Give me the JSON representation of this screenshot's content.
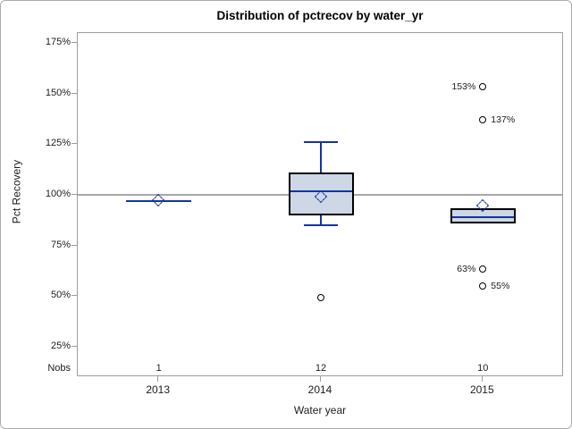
{
  "window": {
    "background": "#ffffff",
    "border_color": "#acacac"
  },
  "chart_data": {
    "type": "boxplot",
    "title": "Distribution of pctrecov by water_yr",
    "xlabel": "Water year",
    "ylabel": "Pct Recovery",
    "nobs_header": "Nobs",
    "y_axis": {
      "ticks": [
        {
          "value": 175,
          "label": "175%"
        },
        {
          "value": 150,
          "label": "150%"
        },
        {
          "value": 125,
          "label": "125%"
        },
        {
          "value": 100,
          "label": "100%"
        },
        {
          "value": 75,
          "label": "75%"
        },
        {
          "value": 50,
          "label": "50%"
        },
        {
          "value": 25,
          "label": "25%"
        }
      ],
      "range": [
        10,
        180
      ],
      "grid": false
    },
    "reference_line": {
      "value": 100
    },
    "legend": "none",
    "groups": [
      {
        "category": "2013",
        "nobs": "1",
        "stats": {
          "whisker_low": 97,
          "q1": 97,
          "median": 97,
          "q3": 97,
          "whisker_high": 97,
          "mean": 97
        },
        "outliers": []
      },
      {
        "category": "2014",
        "nobs": "12",
        "stats": {
          "whisker_low": 85,
          "q1": 90,
          "median": 102,
          "q3": 111,
          "whisker_high": 126,
          "mean": 99
        },
        "outliers": [
          {
            "value": 49,
            "label": "",
            "label_side": "none"
          }
        ]
      },
      {
        "category": "2015",
        "nobs": "10",
        "stats": {
          "whisker_low": 86,
          "q1": 86,
          "median": 89,
          "q3": 93.5,
          "whisker_high": 93.5,
          "mean": 94.5
        },
        "outliers": [
          {
            "value": 153,
            "label": "153%",
            "label_side": "left"
          },
          {
            "value": 137,
            "label": "137%",
            "label_side": "right"
          },
          {
            "value": 63,
            "label": "63%",
            "label_side": "left"
          },
          {
            "value": 55,
            "label": "55%",
            "label_side": "right"
          }
        ]
      }
    ],
    "colors": {
      "box_fill": "#cdd7e6",
      "box_border": "#000000",
      "line": "#16349c",
      "reference_line": "#a7a7a7",
      "outlier_stroke": "#000000",
      "frame": "#9e9e9e",
      "text": "#1c1c1c"
    }
  }
}
